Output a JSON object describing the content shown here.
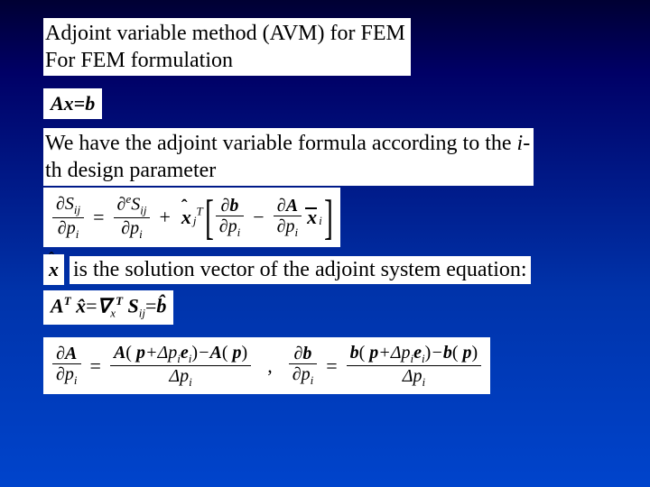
{
  "background": {
    "gradient_top": "#000033",
    "gradient_mid": "#0033aa",
    "gradient_bottom": "#0044cc"
  },
  "title": {
    "line1": "Adjoint variable method (AVM) for FEM",
    "line2": "For FEM formulation",
    "fontsize": 24,
    "color": "#000000",
    "bg": "#ffffff"
  },
  "eq_fem": {
    "html": "Ax<span class=\"eqnorm\">=</span>b",
    "fontsize": 22
  },
  "body1": {
    "line1_html": "We have the adjoint variable formula according to the <span class=\"ital\">i</span>-",
    "line2": "th design parameter",
    "fontsize": 24
  },
  "eq_main": {
    "lhs_num": "<span class=\"partial\">∂</span>S<span class=\"sub\">ij</span>",
    "lhs_den": "<span class=\"partial\">∂</span>p<span class=\"sub\">i</span>",
    "rhs1_num": "<span class=\"partial\">∂</span><span class=\"sup\">e</span>S<span class=\"sub\">ij</span>",
    "rhs1_den": "<span class=\"partial\">∂</span>p<span class=\"sub\">i</span>",
    "xhat_sub": "j",
    "xhat_sup": "T",
    "br_num1": "<span class=\"partial\">∂</span><span class=\"bold\">b</span>",
    "br_den1": "<span class=\"partial\">∂</span>p<span class=\"sub\">i</span>",
    "br_num2": "<span class=\"partial\">∂</span><span class=\"bold\">A</span>",
    "br_den2": "<span class=\"partial\">∂</span>p<span class=\"sub\">i</span>",
    "xbar_sub": "i"
  },
  "body2": {
    "text": "is the solution vector of the adjoint system equation:",
    "fontsize": 24
  },
  "eq_adjsys": {
    "html": "A<span class=\"sup\">T</span> x̂<span class=\"rm\">=</span>∇<span class=\"thin\"><span class=\"sub\">x</span></span><span class=\"sup\">T</span> S<span class=\"sub thin\">ij</span><span class=\"rm\">=</span>b̂"
  },
  "eq_fd": {
    "dA_num": "<span class=\"partial\">∂</span><span class=\"bold\">A</span>",
    "dA_den": "<span class=\"partial\">∂</span>p<span class=\"sub\">i</span>",
    "A_rhs_num": "<span class=\"bold\">A</span><span class=\"upright\">(</span>&nbsp;<span class=\"bold\">p</span>+Δp<span class=\"sub\">i</span><span class=\"bold\">e</span><span class=\"sub\">i</span><span class=\"upright\">)</span>−<span class=\"bold\">A</span><span class=\"upright\">(</span>&nbsp;<span class=\"bold\">p</span><span class=\"upright\">)</span>",
    "A_rhs_den": "Δp<span class=\"sub\">i</span>",
    "db_num": "<span class=\"partial\">∂</span><span class=\"bold\">b</span>",
    "db_den": "<span class=\"partial\">∂</span>p<span class=\"sub\">i</span>",
    "b_rhs_num": "<span class=\"bold\">b</span><span class=\"upright\">(</span>&nbsp;<span class=\"bold\">p</span>+Δp<span class=\"sub\">i</span><span class=\"bold\">e</span><span class=\"sub\">i</span><span class=\"upright\">)</span>−<span class=\"bold\">b</span><span class=\"upright\">(</span>&nbsp;<span class=\"bold\">p</span><span class=\"upright\">)</span>",
    "b_rhs_den": "Δp<span class=\"sub\">i</span>"
  }
}
